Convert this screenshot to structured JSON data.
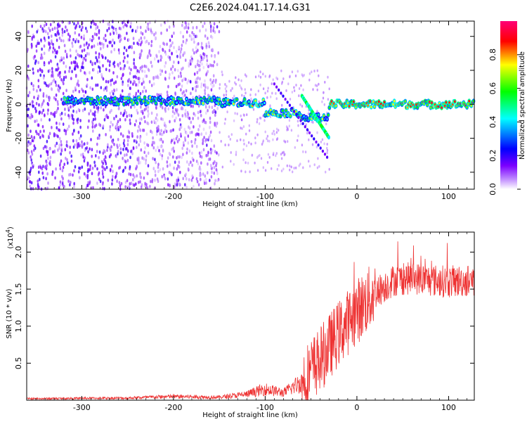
{
  "title": "C2E6.2024.041.17.14.G31",
  "chart_data": [
    {
      "type": "heatmap",
      "xlabel": "Height of straight line (km)",
      "ylabel": "Frequency (Hz)",
      "xlim": [
        -360,
        128
      ],
      "ylim": [
        -50,
        49
      ],
      "x_ticks": [
        -300,
        -200,
        -100,
        0,
        100
      ],
      "y_ticks": [
        -40,
        -20,
        0,
        20,
        40
      ],
      "colorbar": {
        "label": "Normalized spectral amplitude",
        "range": [
          0,
          1
        ],
        "ticks": [
          "0.0",
          "0.2",
          "0.4",
          "0.6",
          "0.8"
        ],
        "colors": [
          "#ffffff",
          "#7b00ff",
          "#0000ff",
          "#00ffff",
          "#00ff00",
          "#ffff00",
          "#ff0000",
          "#ff00aa"
        ]
      },
      "features": [
        {
          "name": "diffuse noise",
          "x_range": [
            -360,
            -150
          ],
          "y_range": [
            -50,
            49
          ],
          "amplitude": 0.12
        },
        {
          "name": "signal band",
          "segments": [
            {
              "x": [
                -320,
                -230
              ],
              "freq": 2,
              "amplitude": 0.5
            },
            {
              "x": [
                -230,
                -150
              ],
              "freq": 2,
              "amplitude": 0.55
            },
            {
              "x": [
                -150,
                -100
              ],
              "freq": 1,
              "amplitude": 0.6
            },
            {
              "x": [
                -100,
                -60
              ],
              "freq": -5,
              "amplitude": 0.6
            },
            {
              "x": [
                -60,
                -30
              ],
              "freq": -8,
              "amplitude": 0.55
            },
            {
              "x": [
                -30,
                128
              ],
              "freq": 0,
              "amplitude": 0.75
            }
          ]
        }
      ]
    },
    {
      "type": "line",
      "xlabel": "Height of straight line (km)",
      "ylabel": "SNR (10 * v/v)",
      "y_scale_label": "(x10",
      "y_scale_exp": "4",
      "y_scale_suffix": ")",
      "xlim": [
        -360,
        128
      ],
      "ylim": [
        0,
        2.27
      ],
      "x_ticks": [
        -300,
        -200,
        -100,
        0,
        100
      ],
      "y_ticks": [
        0.5,
        1.0,
        1.5,
        2.0
      ],
      "y_tick_labels": [
        "0.5",
        "1.0",
        "1.5",
        "2.0"
      ],
      "color": "#ee3333",
      "envelope": [
        {
          "x": -360,
          "y": 0.02
        },
        {
          "x": -250,
          "y": 0.03
        },
        {
          "x": -200,
          "y": 0.05
        },
        {
          "x": -150,
          "y": 0.04
        },
        {
          "x": -120,
          "y": 0.08
        },
        {
          "x": -100,
          "y": 0.15
        },
        {
          "x": -80,
          "y": 0.1
        },
        {
          "x": -60,
          "y": 0.25
        },
        {
          "x": -40,
          "y": 0.55
        },
        {
          "x": -20,
          "y": 0.9
        },
        {
          "x": 0,
          "y": 1.2
        },
        {
          "x": 20,
          "y": 1.45
        },
        {
          "x": 40,
          "y": 1.62
        },
        {
          "x": 60,
          "y": 1.65
        },
        {
          "x": 80,
          "y": 1.62
        },
        {
          "x": 100,
          "y": 1.6
        },
        {
          "x": 128,
          "y": 1.62
        }
      ]
    }
  ]
}
